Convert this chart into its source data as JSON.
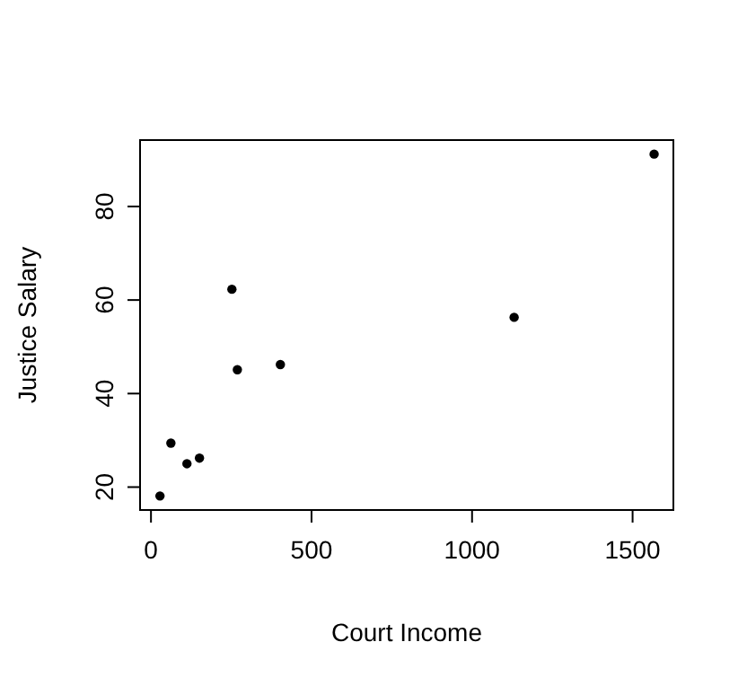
{
  "chart_data": {
    "type": "scatter",
    "xlabel": "Court Income",
    "ylabel": "Justice Salary",
    "x": [
      28,
      62,
      112,
      151,
      252,
      269,
      403,
      1131,
      1567
    ],
    "values": [
      18.1,
      29.4,
      25.0,
      26.2,
      62.3,
      45.1,
      46.2,
      56.3,
      91.2
    ],
    "color": "#000000",
    "marker": "circle",
    "grid": false,
    "xlim": [
      -34,
      1627
    ],
    "ylim": [
      15.1,
      94.2
    ],
    "xticks": [
      0,
      500,
      1000,
      1500
    ],
    "yticks": [
      20,
      40,
      60,
      80
    ]
  }
}
